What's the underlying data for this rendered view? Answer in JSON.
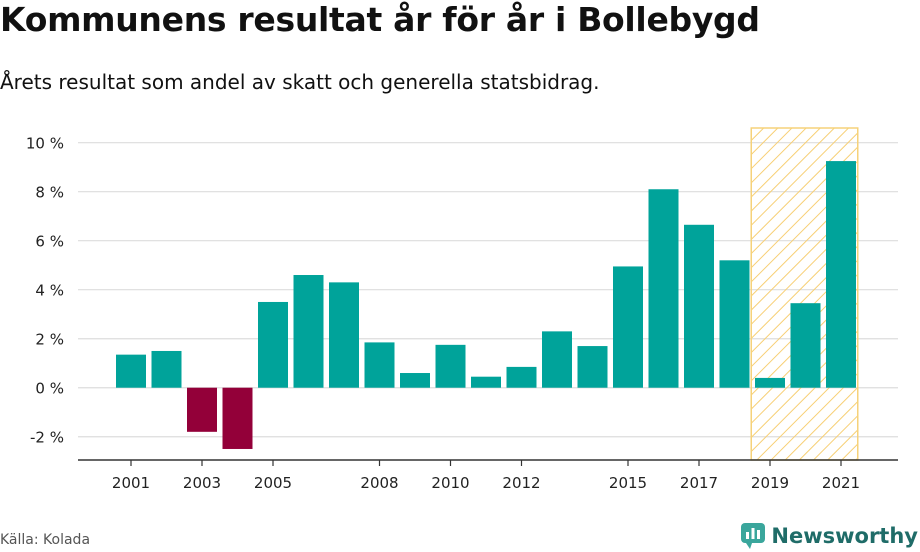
{
  "header": {
    "title": "Kommunens resultat år för år i Bollebygd",
    "subtitle": "Årets resultat som andel av skatt och generella statsbidrag."
  },
  "footer": {
    "source": "Källa: Kolada",
    "brand": "Newsworthy",
    "brand_icon": "newsworthy-logo-icon"
  },
  "colors": {
    "positive": "#00a39a",
    "negative": "#930039",
    "highlight_stroke": "#f6d27a",
    "highlight_hatch": "#f7cf74",
    "grid": "#dddddd",
    "axis": "#333333",
    "brand": "#1f6c68"
  },
  "chart_data": {
    "type": "bar",
    "x": [
      2001,
      2002,
      2003,
      2004,
      2005,
      2006,
      2007,
      2008,
      2009,
      2010,
      2011,
      2012,
      2013,
      2014,
      2015,
      2016,
      2017,
      2018,
      2019,
      2020,
      2021
    ],
    "values": [
      1.35,
      1.5,
      -1.8,
      -2.5,
      3.5,
      4.6,
      4.3,
      1.85,
      0.6,
      1.75,
      0.45,
      0.85,
      2.3,
      1.7,
      4.95,
      8.1,
      6.65,
      5.2,
      0.4,
      3.45,
      9.25
    ],
    "x_tick_labels": [
      "2001",
      "2003",
      "2005",
      "2008",
      "2010",
      "2012",
      "2015",
      "2017",
      "2019",
      "2021"
    ],
    "y_ticks": [
      -2,
      0,
      2,
      4,
      6,
      8,
      10
    ],
    "y_tick_labels": [
      "-2 %",
      "0 %",
      "2 %",
      "4 %",
      "6 %",
      "8 %",
      "10 %"
    ],
    "ylim": [
      -2.95,
      10.6
    ],
    "highlight": {
      "from": 2019,
      "to": 2021
    },
    "grid": true,
    "legend": "none",
    "xlabel": "",
    "ylabel": ""
  }
}
